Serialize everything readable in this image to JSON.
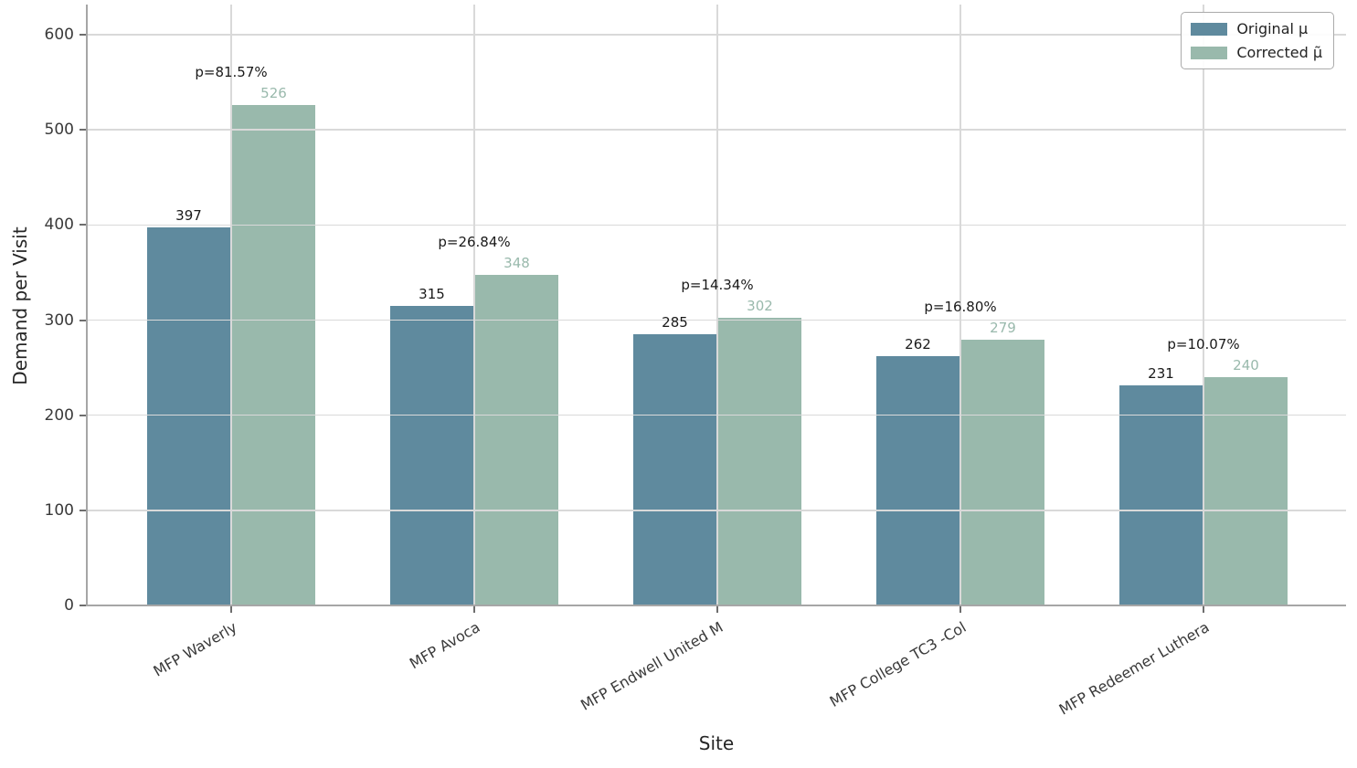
{
  "chart_data": {
    "type": "bar",
    "xlabel": "Site",
    "ylabel": "Demand per Visit",
    "categories": [
      "MFP Waverly",
      "MFP Avoca",
      "MFP Endwell United M",
      "MFP College TC3 -Col",
      "MFP Redeemer Luthera"
    ],
    "series": [
      {
        "name": "Original μ",
        "color": "#5f8a9e",
        "label_color": "#1a1a1a",
        "values": [
          397,
          315,
          285,
          262,
          231
        ]
      },
      {
        "name": "Corrected μ̃",
        "color": "#99b9ac",
        "label_color": "#99b9ac",
        "values": [
          526,
          348,
          302,
          279,
          240
        ]
      }
    ],
    "annotations": [
      "p=81.57%",
      "p=26.84%",
      "p=14.34%",
      "p=16.80%",
      "p=10.07%"
    ],
    "yticks": [
      0,
      100,
      200,
      300,
      400,
      500,
      600
    ],
    "ylim": [
      0,
      600
    ],
    "grid": true,
    "grid_on_top": true,
    "legend_position": "upper right"
  }
}
